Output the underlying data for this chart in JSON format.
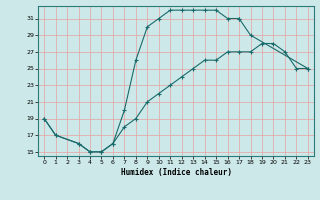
{
  "xlabel": "Humidex (Indice chaleur)",
  "bg_color": "#cce8e8",
  "grid_color": "#e8a0a0",
  "line_color": "#1a6b6b",
  "xlim": [
    -0.5,
    23.5
  ],
  "ylim": [
    14.5,
    32.5
  ],
  "xticks": [
    0,
    1,
    2,
    3,
    4,
    5,
    6,
    7,
    8,
    9,
    10,
    11,
    12,
    13,
    14,
    15,
    16,
    17,
    18,
    19,
    20,
    21,
    22,
    23
  ],
  "yticks": [
    15,
    17,
    19,
    21,
    23,
    25,
    27,
    29,
    31
  ],
  "series1_x": [
    0,
    1,
    3,
    4,
    5,
    6,
    7,
    8,
    9,
    10,
    11,
    12,
    13,
    14,
    15,
    16,
    17
  ],
  "series1_y": [
    19,
    17,
    16,
    15,
    15,
    16,
    20,
    26,
    30,
    31,
    32,
    32,
    32,
    32,
    32,
    31,
    31
  ],
  "series2_x": [
    17,
    18,
    23
  ],
  "series2_y": [
    31,
    29,
    25
  ],
  "series3_x": [
    0,
    1,
    3,
    4,
    5,
    6,
    7,
    8,
    9,
    10,
    11,
    12,
    13,
    14,
    15,
    16,
    17,
    18,
    19,
    20,
    21,
    22,
    23
  ],
  "series3_y": [
    19,
    17,
    16,
    15,
    15,
    16,
    18,
    19,
    21,
    22,
    23,
    24,
    25,
    26,
    26,
    27,
    27,
    27,
    28,
    28,
    27,
    25,
    25
  ]
}
